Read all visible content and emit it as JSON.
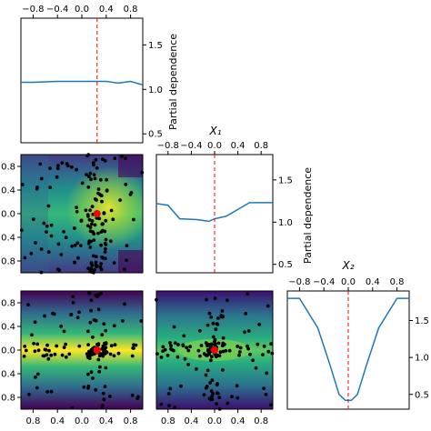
{
  "figure": {
    "background": "#ffffff"
  },
  "colors": {
    "line": "#1f77b4",
    "marker": "#ff0000",
    "points": "#000000",
    "viridis": [
      "#440154",
      "#46327e",
      "#365c8d",
      "#277f8e",
      "#1fa187",
      "#4ac16d",
      "#a0da39",
      "#fde725"
    ]
  },
  "labels": {
    "partial_dependence": "Partial dependence",
    "x1": "X₁",
    "x2": "X₂"
  },
  "ticks": {
    "x_top": [
      "−0.8",
      "−0.4",
      "0.0",
      "0.4",
      "0.8"
    ],
    "x_bottom_row": [
      "0.8",
      "0.4",
      "0.0",
      "0.4",
      "0.8"
    ],
    "y_left": [
      "0.8",
      "0.4",
      "0.0",
      "0.4",
      "0.8"
    ],
    "pd_y_upper": [
      "0.5",
      "1.0",
      "1.5"
    ],
    "pd_y_lower": [
      "0.5",
      "1.0",
      "1.5"
    ]
  },
  "chart_data": [
    {
      "type": "line",
      "panel": "partial dependence on X0 (diagonal, row 1)",
      "x": [
        -1.0,
        -0.8,
        -0.4,
        0.0,
        0.2,
        0.4,
        0.6,
        0.8,
        1.0
      ],
      "y": [
        1.08,
        1.08,
        1.09,
        1.09,
        1.09,
        1.09,
        1.07,
        1.09,
        1.05
      ],
      "xlim": [
        -1.0,
        1.0
      ],
      "ylim": [
        0.4,
        1.8
      ],
      "yticks": [
        0.5,
        1.0,
        1.5
      ],
      "minimum_x": 0.25,
      "ylabel": "Partial dependence"
    },
    {
      "type": "line",
      "panel": "partial dependence on X1 (diagonal, row 2)",
      "x": [
        -1.0,
        -0.8,
        -0.6,
        -0.3,
        -0.1,
        0.0,
        0.2,
        0.4,
        0.6,
        0.8,
        1.0
      ],
      "y": [
        1.22,
        1.2,
        1.04,
        1.03,
        1.01,
        1.04,
        1.07,
        1.15,
        1.23,
        1.23,
        1.23
      ],
      "xlim": [
        -1.0,
        1.0
      ],
      "ylim": [
        0.4,
        1.8
      ],
      "yticks": [
        0.5,
        1.0,
        1.5
      ],
      "minimum_x": 0.0,
      "xlabel": "X₁",
      "ylabel": "Partial dependence"
    },
    {
      "type": "line",
      "panel": "partial dependence on X2 (diagonal, row 3)",
      "x": [
        -1.0,
        -0.8,
        -0.5,
        -0.3,
        -0.15,
        -0.05,
        0.05,
        0.15,
        0.3,
        0.5,
        0.8,
        1.0
      ],
      "y": [
        1.8,
        1.8,
        1.4,
        0.9,
        0.5,
        0.42,
        0.42,
        0.5,
        0.9,
        1.4,
        1.8,
        1.8
      ],
      "xlim": [
        -1.0,
        1.0
      ],
      "ylim": [
        0.3,
        1.9
      ],
      "yticks": [
        0.5,
        1.0,
        1.5
      ],
      "minimum_x": 0.0,
      "xlabel": "X₂"
    },
    {
      "type": "heatmap",
      "panel": "X0 vs X1 contour (row 2, col 1)",
      "xlim": [
        -1.0,
        1.0
      ],
      "ylim": [
        -1.0,
        1.0
      ],
      "minimum": [
        0.25,
        0.0
      ],
      "samples": "random points"
    },
    {
      "type": "heatmap",
      "panel": "X0 vs X2 contour (row 3, col 1)",
      "xlim": [
        -1.0,
        1.0
      ],
      "ylim": [
        -1.0,
        1.0
      ],
      "minimum": [
        0.25,
        0.0
      ],
      "samples": "random points"
    },
    {
      "type": "heatmap",
      "panel": "X1 vs X2 contour (row 3, col 2)",
      "xlim": [
        -1.0,
        1.0
      ],
      "ylim": [
        -1.0,
        1.0
      ],
      "minimum": [
        0.0,
        0.0
      ],
      "samples": "random points"
    }
  ]
}
